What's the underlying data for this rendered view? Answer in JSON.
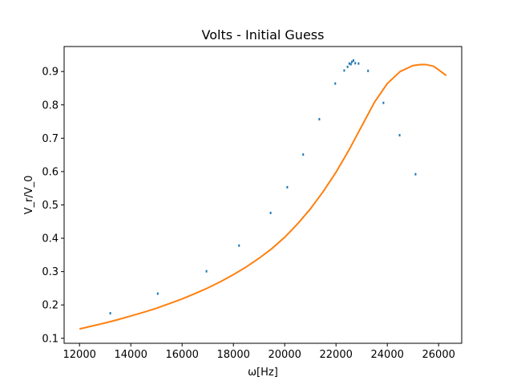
{
  "chart_data": {
    "type": "scatter",
    "title": "Volts - Initial Guess",
    "xlabel": "ω[Hz]",
    "ylabel": "V_r/V_0",
    "xlim": [
      11400,
      26900
    ],
    "ylim": [
      0.085,
      0.975
    ],
    "xticks": [
      12000,
      14000,
      16000,
      18000,
      20000,
      22000,
      24000,
      26000
    ],
    "yticks": [
      0.1,
      0.2,
      0.3,
      0.4,
      0.5,
      0.6,
      0.7,
      0.8,
      0.9
    ],
    "grid": false,
    "colors": {
      "measured": "#1f77b4",
      "initial_guess": "#ff7f0e"
    },
    "series": [
      {
        "kind": "scatter",
        "x": [
          13200,
          15050,
          16950,
          18220,
          19450,
          20100,
          20720,
          21350,
          21970,
          22320,
          22450,
          22520,
          22580,
          22620,
          22680,
          22750,
          22880,
          23250,
          23850,
          24480,
          25100
        ],
        "y": [
          0.175,
          0.234,
          0.301,
          0.378,
          0.476,
          0.553,
          0.651,
          0.757,
          0.864,
          0.903,
          0.914,
          0.924,
          0.922,
          0.929,
          0.933,
          0.925,
          0.924,
          0.902,
          0.806,
          0.709,
          0.592
        ]
      },
      {
        "kind": "line",
        "x": [
          12000,
          12500,
          13000,
          13500,
          14000,
          14500,
          15000,
          15500,
          16000,
          16500,
          17000,
          17500,
          18000,
          18500,
          19000,
          19500,
          20000,
          20500,
          21000,
          21500,
          22000,
          22500,
          23000,
          23500,
          24000,
          24500,
          25000,
          25300,
          25500,
          25800,
          26000,
          26300
        ],
        "y": [
          0.128,
          0.137,
          0.146,
          0.156,
          0.167,
          0.178,
          0.19,
          0.204,
          0.218,
          0.234,
          0.251,
          0.27,
          0.291,
          0.314,
          0.34,
          0.369,
          0.403,
          0.443,
          0.488,
          0.54,
          0.598,
          0.664,
          0.736,
          0.808,
          0.864,
          0.9,
          0.918,
          0.921,
          0.921,
          0.916,
          0.905,
          0.888
        ]
      }
    ]
  }
}
